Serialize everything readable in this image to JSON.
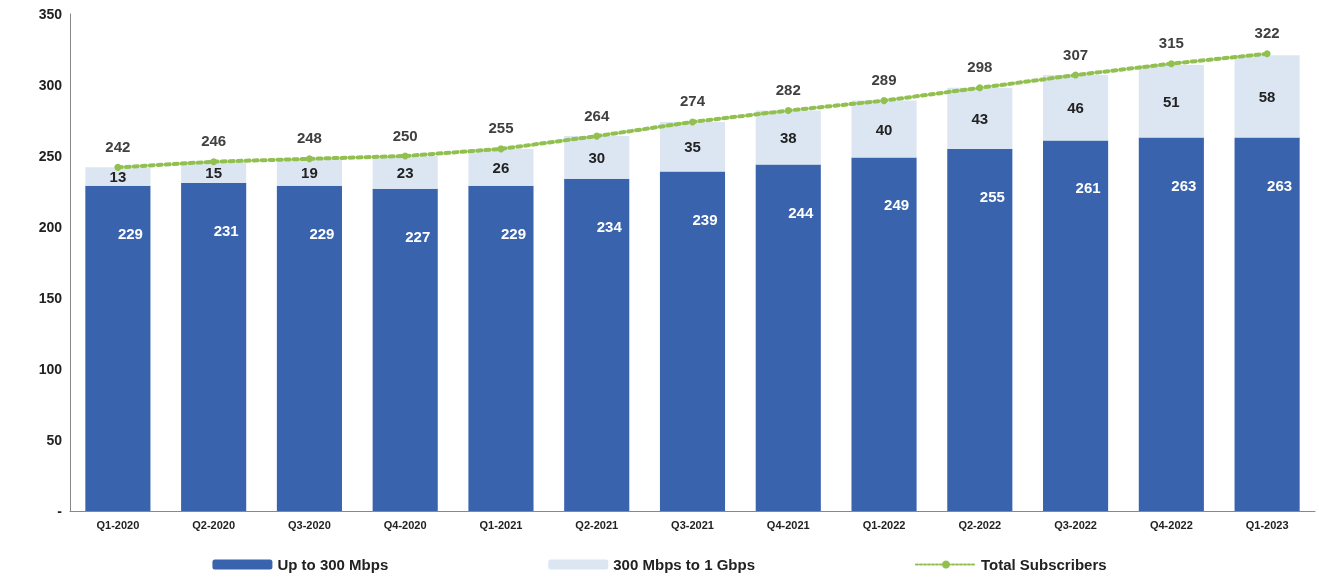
{
  "chart_data": {
    "type": "bar",
    "stacked": true,
    "categories": [
      "Q1-2020",
      "Q2-2020",
      "Q3-2020",
      "Q4-2020",
      "Q1-2021",
      "Q2-2021",
      "Q3-2021",
      "Q4-2021",
      "Q1-2022",
      "Q2-2022",
      "Q3-2022",
      "Q4-2022",
      "Q1-2023"
    ],
    "series": [
      {
        "name": "Up to 300 Mbps",
        "color": "#3a63ad",
        "values": [
          229,
          231,
          229,
          227,
          229,
          234,
          239,
          244,
          249,
          255,
          261,
          263,
          263
        ]
      },
      {
        "name": "300 Mbps to 1 Gbps",
        "color": "#dce6f2",
        "values": [
          13,
          15,
          19,
          23,
          26,
          30,
          35,
          38,
          40,
          43,
          46,
          51,
          58
        ]
      },
      {
        "name": "Total Subscribers",
        "type": "line",
        "color": "#92c050",
        "marker": "circle",
        "line_style": "dotted",
        "values": [
          242,
          246,
          248,
          250,
          255,
          264,
          274,
          282,
          289,
          298,
          307,
          315,
          322
        ]
      }
    ],
    "ylim": [
      0,
      350
    ],
    "yticks": [
      {
        "value": 0,
        "label": "-"
      },
      50,
      100,
      150,
      200,
      250,
      300,
      350
    ],
    "data_labels": true,
    "grid": false,
    "legend": "bottom"
  }
}
